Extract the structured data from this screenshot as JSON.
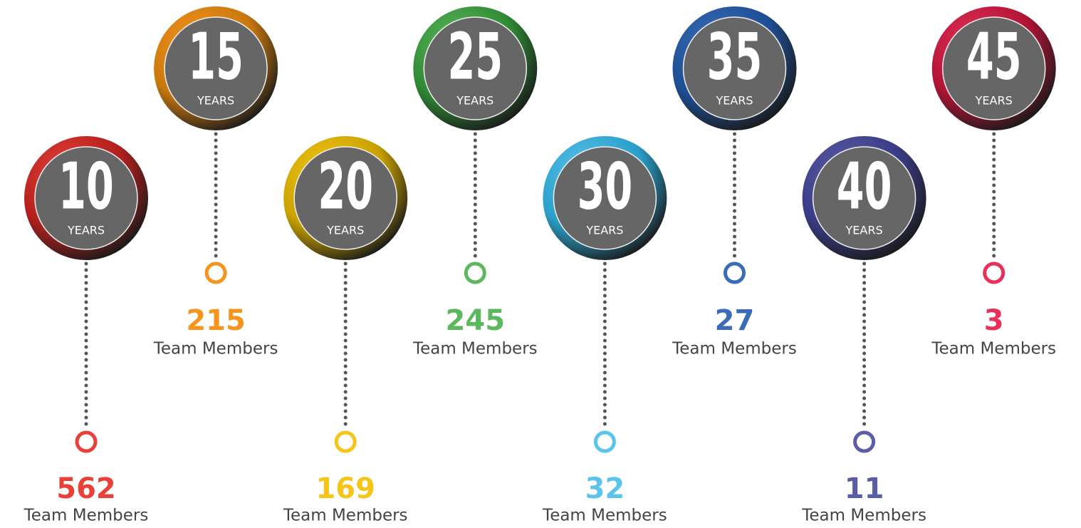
{
  "unit": "YEARS",
  "label": "Team Members",
  "items": [
    {
      "years": 10,
      "count": 562,
      "color": "#e8413a",
      "ring": "#b3201c"
    },
    {
      "years": 15,
      "count": 215,
      "color": "#f7941d",
      "ring": "#c8780f"
    },
    {
      "years": 20,
      "count": 169,
      "color": "#f5c518",
      "ring": "#c9a200"
    },
    {
      "years": 25,
      "count": 245,
      "color": "#5cb85c",
      "ring": "#2f8a34"
    },
    {
      "years": 30,
      "count": 32,
      "color": "#5bc4ec",
      "ring": "#2a9fc9"
    },
    {
      "years": 35,
      "count": 27,
      "color": "#3a6db5",
      "ring": "#1e4f95"
    },
    {
      "years": 40,
      "count": 11,
      "color": "#5b5ea6",
      "ring": "#3a3c86"
    },
    {
      "years": 45,
      "count": 3,
      "color": "#e8315a",
      "ring": "#b01436"
    }
  ]
}
